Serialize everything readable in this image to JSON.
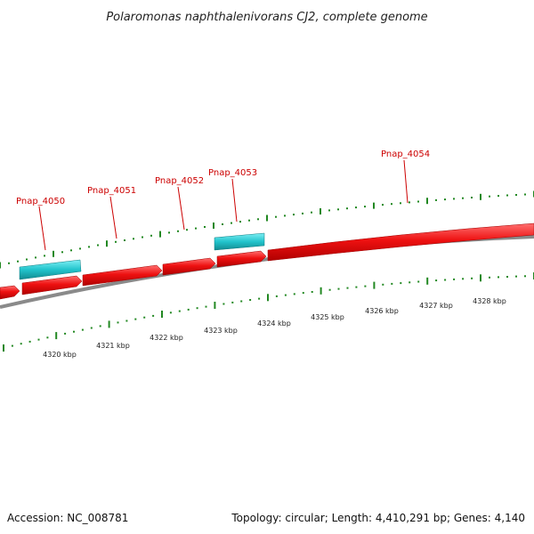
{
  "title": "Polaromonas naphthalenivorans CJ2, complete genome",
  "footer": {
    "accession": "Accession: NC_008781",
    "summary": "Topology: circular; Length: 4,410,291 bp; Genes: 4,140"
  },
  "genes": [
    {
      "label": "Pnap_4050",
      "strand": "reverse"
    },
    {
      "label": "Pnap_4051",
      "strand": "forward"
    },
    {
      "label": "Pnap_4052",
      "strand": "forward"
    },
    {
      "label": "Pnap_4053",
      "strand": "reverse"
    },
    {
      "label": "Pnap_4054",
      "strand": "forward"
    }
  ],
  "ruler": {
    "labels": [
      "4320 kbp",
      "4321 kbp",
      "4322 kbp",
      "4323 kbp",
      "4324 kbp",
      "4325 kbp",
      "4326 kbp",
      "4327 kbp",
      "4328 kbp"
    ]
  },
  "colors": {
    "forward_gene": "#ee1111",
    "reverse_gene": "#22c4cc",
    "backbone": "#888888",
    "ticks": "#228822",
    "label": "#cc0000"
  }
}
